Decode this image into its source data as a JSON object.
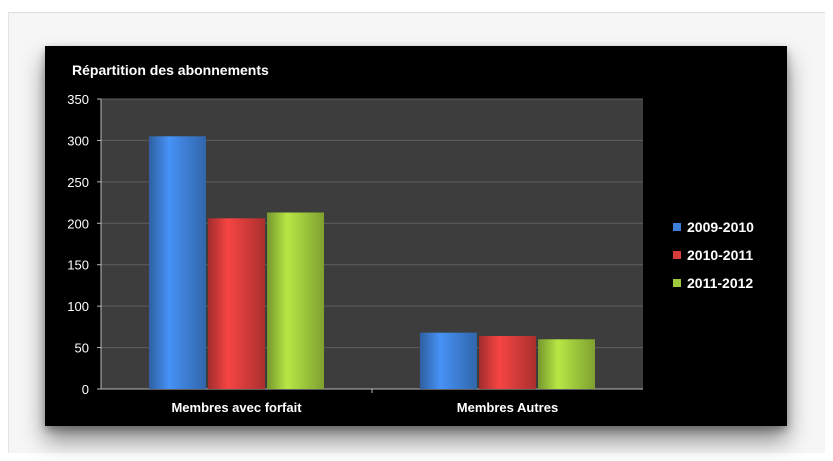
{
  "chart_data": {
    "type": "bar",
    "title": "Répartition des abonnements",
    "categories": [
      "Membres avec forfait",
      "Membres Autres"
    ],
    "series": [
      {
        "name": "2009-2010",
        "values": [
          305,
          68
        ],
        "color": "#3d7fd6"
      },
      {
        "name": "2010-2011",
        "values": [
          206,
          64
        ],
        "color": "#d63c3a"
      },
      {
        "name": "2011-2012",
        "values": [
          213,
          60
        ],
        "color": "#9fc93c"
      }
    ],
    "ylim": [
      0,
      350
    ],
    "yticks": [
      0,
      50,
      100,
      150,
      200,
      250,
      300,
      350
    ],
    "grid": true,
    "legend": "right",
    "xlabel": "",
    "ylabel": ""
  },
  "colors": {
    "plot_background": "#3d3d3d",
    "chart_background": "#000000",
    "grid": "#5e5e5e"
  }
}
